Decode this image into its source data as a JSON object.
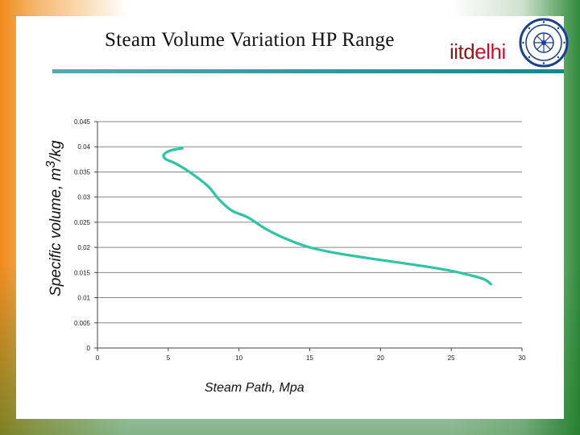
{
  "slide": {
    "title": "Steam Volume Variation HP Range",
    "logo": {
      "part1": "iitd",
      "part2": "elhi"
    }
  },
  "chart_data": {
    "type": "line",
    "xlabel": "Steam Path, Mpa",
    "ylabel": "Specific volume, m³/kg",
    "ylabel_parts": {
      "base": "Specific volume, m",
      "sup": "3",
      "rest": "/kg"
    },
    "xlim": [
      0,
      30
    ],
    "ylim": [
      0,
      0.045
    ],
    "xticks": [
      "0",
      "5",
      "10",
      "15",
      "20",
      "25",
      "30"
    ],
    "yticks": [
      "0",
      "0.005",
      "0.01",
      "0.015",
      "0.02",
      "0.025",
      "0.03",
      "0.035",
      "0.04",
      "0.045"
    ],
    "grid": "horizontal",
    "series": [
      {
        "color": "#2ec4a4",
        "points": [
          [
            6.0,
            0.0397
          ],
          [
            5.2,
            0.0393
          ],
          [
            4.7,
            0.0385
          ],
          [
            4.8,
            0.0376
          ],
          [
            5.5,
            0.0367
          ],
          [
            6.5,
            0.035
          ],
          [
            7.8,
            0.0322
          ],
          [
            8.6,
            0.0295
          ],
          [
            9.5,
            0.0273
          ],
          [
            10.6,
            0.026
          ],
          [
            12.0,
            0.0235
          ],
          [
            13.5,
            0.0215
          ],
          [
            15.0,
            0.02
          ],
          [
            17.0,
            0.0188
          ],
          [
            19.5,
            0.0177
          ],
          [
            22.0,
            0.0167
          ],
          [
            24.5,
            0.0156
          ],
          [
            26.0,
            0.0147
          ],
          [
            27.3,
            0.0137
          ],
          [
            27.8,
            0.0127
          ]
        ]
      }
    ]
  }
}
